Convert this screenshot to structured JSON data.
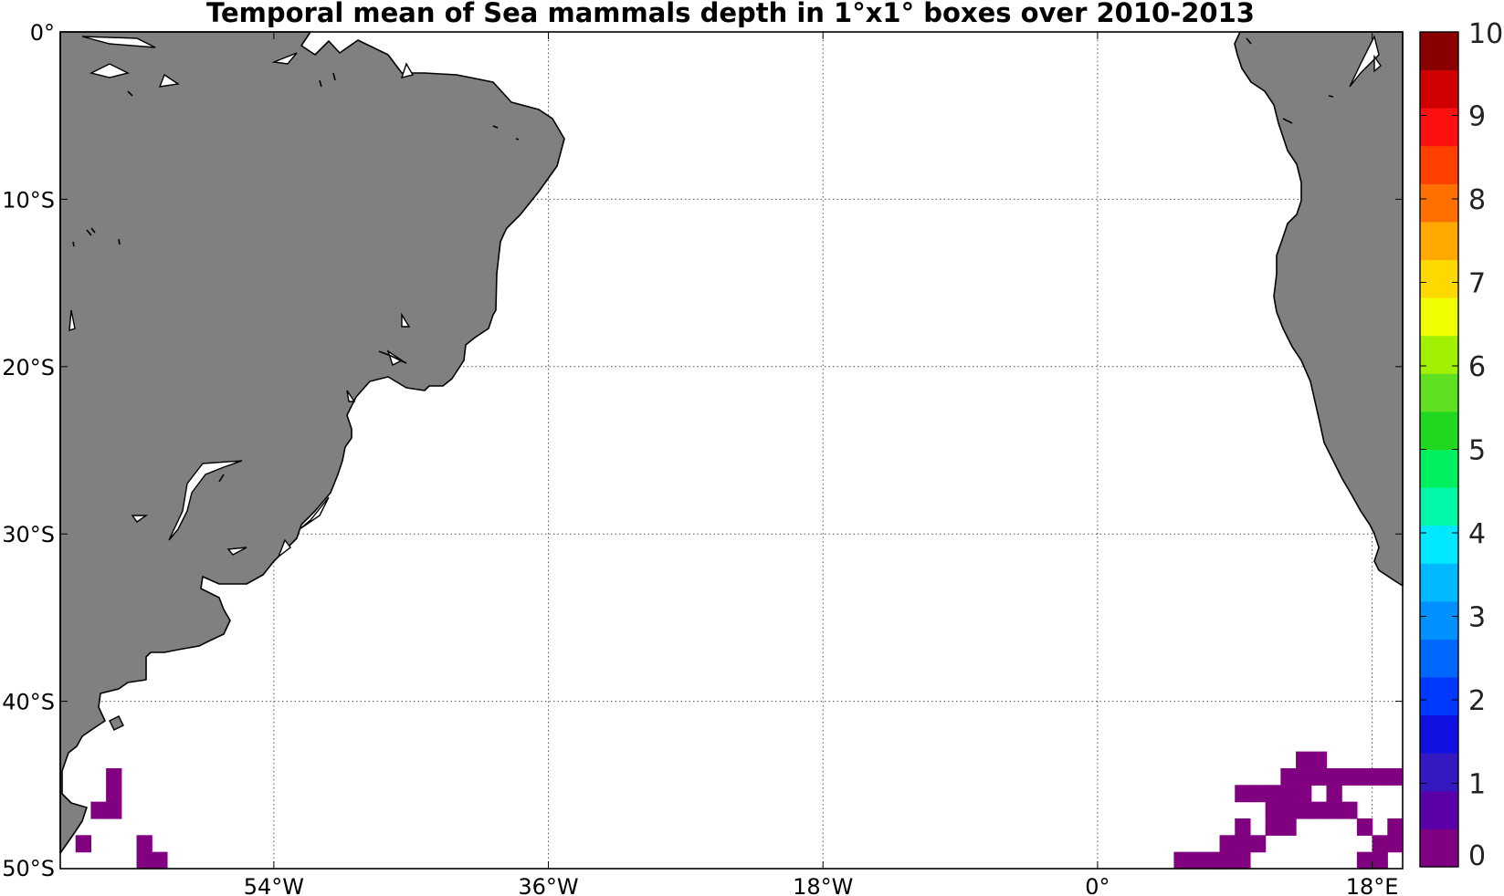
{
  "title": "Temporal mean of Sea mammals depth in 1°x1° boxes over 2010-2013",
  "map": {
    "lon_range": [
      -68,
      20
    ],
    "lat_range": [
      -50,
      0
    ],
    "land_color": "#808080",
    "water_color": "#ffffff",
    "cell_color": "#800080",
    "x_ticks": [
      {
        "lon": -54,
        "label": "54°W"
      },
      {
        "lon": -36,
        "label": "36°W"
      },
      {
        "lon": -18,
        "label": "18°W"
      },
      {
        "lon": 0,
        "label": "0°"
      },
      {
        "lon": 18,
        "label": "18°E"
      }
    ],
    "y_ticks": [
      {
        "lat": 0,
        "label": "0°"
      },
      {
        "lat": -10,
        "label": "10°S"
      },
      {
        "lat": -20,
        "label": "20°S"
      },
      {
        "lat": -30,
        "label": "30°S"
      },
      {
        "lat": -40,
        "label": "40°S"
      },
      {
        "lat": -50,
        "label": "50°S"
      }
    ],
    "cells": [
      [
        -65,
        -44
      ],
      [
        -65,
        -45
      ],
      [
        -66,
        -46
      ],
      [
        -65,
        -46
      ],
      [
        -67,
        -48
      ],
      [
        -63,
        -48
      ],
      [
        -63,
        -49
      ],
      [
        -62,
        -49
      ],
      [
        13,
        -43
      ],
      [
        14,
        -43
      ],
      [
        12,
        -44
      ],
      [
        13,
        -44
      ],
      [
        14,
        -44
      ],
      [
        15,
        -44
      ],
      [
        16,
        -44
      ],
      [
        17,
        -44
      ],
      [
        18,
        -44
      ],
      [
        19,
        -44
      ],
      [
        9,
        -45
      ],
      [
        10,
        -45
      ],
      [
        11,
        -45
      ],
      [
        12,
        -45
      ],
      [
        13,
        -45
      ],
      [
        15,
        -45
      ],
      [
        11,
        -46
      ],
      [
        12,
        -46
      ],
      [
        13,
        -46
      ],
      [
        14,
        -46
      ],
      [
        15,
        -46
      ],
      [
        16,
        -46
      ],
      [
        9,
        -47
      ],
      [
        11,
        -47
      ],
      [
        12,
        -47
      ],
      [
        17,
        -47
      ],
      [
        19,
        -47
      ],
      [
        8,
        -48
      ],
      [
        9,
        -48
      ],
      [
        10,
        -48
      ],
      [
        18,
        -48
      ],
      [
        19,
        -48
      ],
      [
        5,
        -49
      ],
      [
        6,
        -49
      ],
      [
        7,
        -49
      ],
      [
        8,
        -49
      ],
      [
        9,
        -49
      ],
      [
        17,
        -49
      ],
      [
        18,
        -49
      ]
    ]
  },
  "colorbar": {
    "min": 0,
    "max": 10,
    "tick_labels": [
      "0",
      "1",
      "2",
      "3",
      "4",
      "5",
      "6",
      "7",
      "8",
      "9",
      "10"
    ],
    "colors": [
      "#7f0080",
      "#5a00a8",
      "#3418c0",
      "#1010e0",
      "#0038ff",
      "#0068ff",
      "#0090ff",
      "#00b8ff",
      "#00e8ff",
      "#00f8a8",
      "#00f060",
      "#20d820",
      "#60e020",
      "#a0f000",
      "#f0ff00",
      "#ffd800",
      "#ffa800",
      "#ff7000",
      "#ff4000",
      "#ff1010",
      "#d00000",
      "#8a0000"
    ]
  }
}
